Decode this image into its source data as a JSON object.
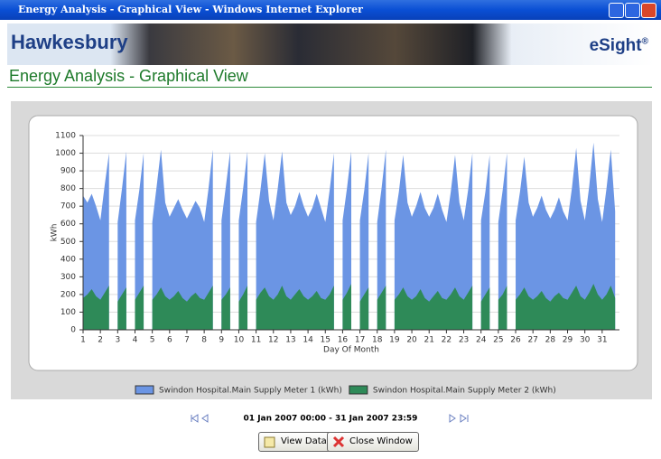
{
  "window": {
    "title": "Energy Analysis - Graphical View - Windows Internet Explorer"
  },
  "header": {
    "brand": "Hawkesbury",
    "product": "eSight",
    "product_mark": "®"
  },
  "page": {
    "heading": "Energy Analysis - Graphical View"
  },
  "chart_data": {
    "type": "area",
    "x_label": "Day Of Month",
    "y_label": "kWh",
    "categories": [
      "1",
      null,
      null,
      null,
      "2",
      null,
      null,
      null,
      "3",
      null,
      null,
      null,
      "4",
      null,
      null,
      null,
      "5",
      null,
      null,
      null,
      "6",
      null,
      null,
      null,
      "7",
      null,
      null,
      null,
      "8",
      null,
      null,
      null,
      "9",
      null,
      null,
      null,
      "10",
      null,
      null,
      null,
      "11",
      null,
      null,
      null,
      "12",
      null,
      null,
      null,
      "13",
      null,
      null,
      null,
      "14",
      null,
      null,
      null,
      "15",
      null,
      null,
      null,
      "16",
      null,
      null,
      null,
      "17",
      null,
      null,
      null,
      "18",
      null,
      null,
      null,
      "19",
      null,
      null,
      null,
      "20",
      null,
      null,
      null,
      "21",
      null,
      null,
      null,
      "22",
      null,
      null,
      null,
      "23",
      null,
      null,
      null,
      "24",
      null,
      null,
      null,
      "25",
      null,
      null,
      null,
      "26",
      null,
      null,
      null,
      "27",
      null,
      null,
      null,
      "28",
      null,
      null,
      null,
      "29",
      null,
      null,
      null,
      "30",
      null,
      null,
      null,
      "31",
      null,
      null,
      null
    ],
    "series": [
      {
        "name": "Swindon Hospital.Main Supply Meter 1 (kWh)",
        "color": "#6b95e4",
        "values": [
          760,
          720,
          770,
          700,
          620,
          820,
          1000,
          null,
          610,
          800,
          1010,
          null,
          620,
          790,
          1000,
          null,
          610,
          810,
          1020,
          720,
          640,
          690,
          740,
          680,
          630,
          680,
          730,
          690,
          610,
          800,
          1020,
          null,
          620,
          810,
          1010,
          null,
          620,
          800,
          1010,
          null,
          610,
          790,
          1000,
          730,
          620,
          800,
          1010,
          720,
          650,
          700,
          780,
          700,
          640,
          690,
          770,
          690,
          610,
          790,
          1000,
          null,
          620,
          800,
          1010,
          null,
          620,
          790,
          1000,
          null,
          610,
          800,
          1020,
          null,
          620,
          780,
          990,
          720,
          640,
          700,
          780,
          690,
          640,
          690,
          770,
          680,
          610,
          780,
          990,
          720,
          620,
          790,
          1000,
          null,
          620,
          780,
          990,
          null,
          610,
          790,
          1000,
          null,
          620,
          780,
          980,
          720,
          640,
          690,
          760,
          680,
          630,
          680,
          750,
          670,
          620,
          800,
          1030,
          730,
          620,
          810,
          1060,
          740,
          610,
          800,
          1020,
          670
        ]
      },
      {
        "name": "Swindon Hospital.Main Supply Meter 2 (kWh)",
        "color": "#2e8a58",
        "values": [
          180,
          200,
          230,
          190,
          170,
          210,
          250,
          null,
          160,
          200,
          240,
          null,
          170,
          210,
          250,
          null,
          170,
          200,
          240,
          190,
          170,
          190,
          220,
          180,
          160,
          190,
          210,
          180,
          170,
          210,
          250,
          null,
          170,
          200,
          240,
          null,
          160,
          200,
          250,
          null,
          170,
          210,
          240,
          190,
          170,
          200,
          250,
          190,
          170,
          200,
          230,
          190,
          170,
          190,
          220,
          180,
          170,
          200,
          250,
          null,
          170,
          210,
          260,
          null,
          160,
          200,
          240,
          null,
          170,
          210,
          250,
          null,
          170,
          200,
          240,
          190,
          170,
          190,
          230,
          180,
          160,
          190,
          220,
          180,
          170,
          200,
          240,
          190,
          170,
          210,
          250,
          null,
          160,
          200,
          240,
          null,
          170,
          200,
          250,
          null,
          170,
          200,
          240,
          190,
          170,
          190,
          220,
          180,
          160,
          190,
          210,
          180,
          170,
          210,
          250,
          190,
          170,
          210,
          260,
          200,
          170,
          200,
          250,
          180
        ]
      }
    ],
    "ylim": [
      0,
      1100
    ],
    "yticks": [
      0,
      100,
      200,
      300,
      400,
      500,
      600,
      700,
      800,
      900,
      1000,
      1100
    ],
    "grid": true
  },
  "navigation": {
    "date_range": "01 Jan 2007 00:00 - 31 Jan 2007 23:59"
  },
  "buttons": [
    "View Data",
    "Close Window"
  ]
}
